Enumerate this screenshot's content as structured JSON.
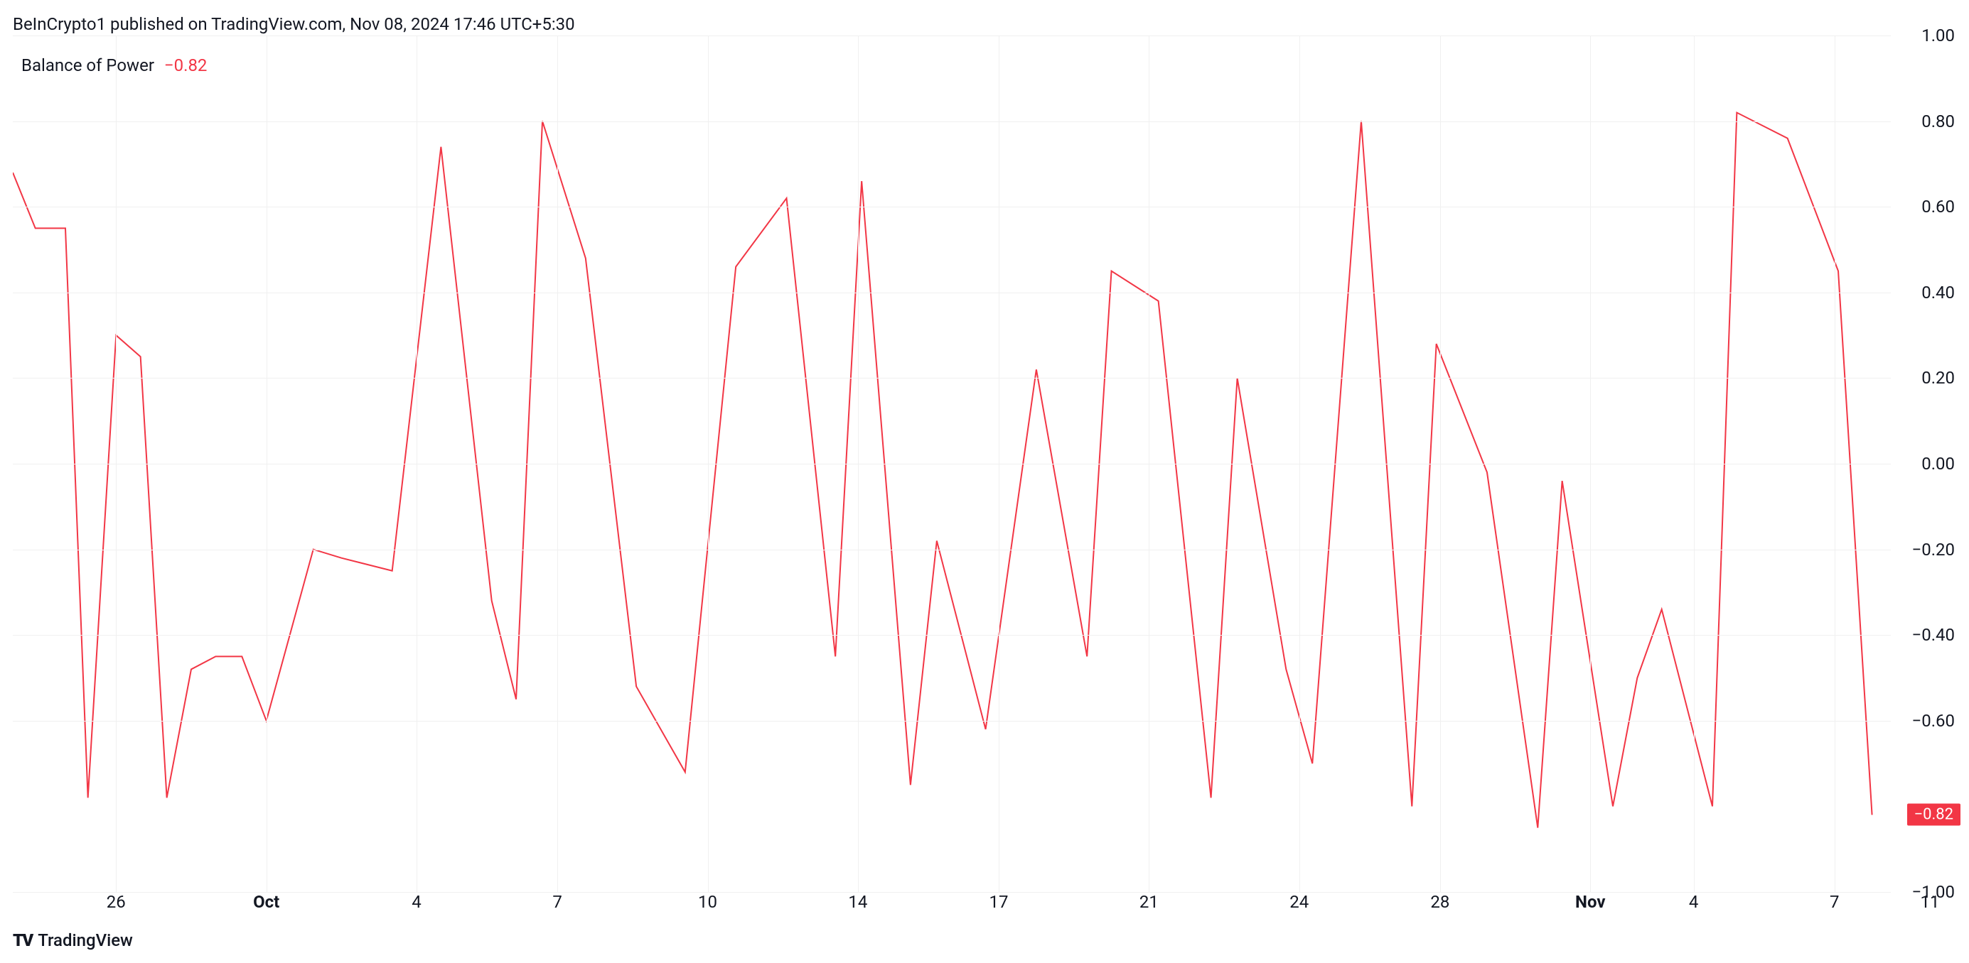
{
  "header": {
    "text": "BeInCrypto1 published on TradingView.com, Nov 08, 2024 17:46 UTC+5:30"
  },
  "indicator": {
    "name": "Balance of Power",
    "value": "−0.82"
  },
  "chart": {
    "type": "line",
    "line_color": "#f23645",
    "line_width": 2,
    "background_color": "#ffffff",
    "grid_color": "#f0f0f0",
    "ylim": [
      -1.0,
      1.0
    ],
    "yticks": [
      {
        "v": 1.0,
        "label": "1.00"
      },
      {
        "v": 0.8,
        "label": "0.80"
      },
      {
        "v": 0.6,
        "label": "0.60"
      },
      {
        "v": 0.4,
        "label": "0.40"
      },
      {
        "v": 0.2,
        "label": "0.20"
      },
      {
        "v": 0.0,
        "label": "0.00"
      },
      {
        "v": -0.2,
        "label": "−0.20"
      },
      {
        "v": -0.4,
        "label": "−0.40"
      },
      {
        "v": -0.6,
        "label": "−0.60"
      },
      {
        "v": -1.0,
        "label": "−1.00"
      }
    ],
    "current_value_badge": "−0.82",
    "xticks": [
      {
        "x": 0.055,
        "label": "26",
        "bold": false
      },
      {
        "x": 0.135,
        "label": "Oct",
        "bold": true
      },
      {
        "x": 0.215,
        "label": "4",
        "bold": false
      },
      {
        "x": 0.29,
        "label": "7",
        "bold": false
      },
      {
        "x": 0.37,
        "label": "10",
        "bold": false
      },
      {
        "x": 0.45,
        "label": "14",
        "bold": false
      },
      {
        "x": 0.525,
        "label": "17",
        "bold": false
      },
      {
        "x": 0.605,
        "label": "21",
        "bold": false
      },
      {
        "x": 0.685,
        "label": "24",
        "bold": false
      },
      {
        "x": 0.76,
        "label": "28",
        "bold": false
      },
      {
        "x": 0.84,
        "label": "Nov",
        "bold": true
      },
      {
        "x": 0.895,
        "label": "4",
        "bold": false
      },
      {
        "x": 0.97,
        "label": "7",
        "bold": false
      }
    ],
    "x_right_label": "11",
    "data": [
      {
        "x": 0.0,
        "y": 0.68
      },
      {
        "x": 0.012,
        "y": 0.55
      },
      {
        "x": 0.028,
        "y": 0.55
      },
      {
        "x": 0.04,
        "y": -0.78
      },
      {
        "x": 0.055,
        "y": 0.3
      },
      {
        "x": 0.068,
        "y": 0.25
      },
      {
        "x": 0.082,
        "y": -0.78
      },
      {
        "x": 0.095,
        "y": -0.48
      },
      {
        "x": 0.108,
        "y": -0.45
      },
      {
        "x": 0.122,
        "y": -0.45
      },
      {
        "x": 0.135,
        "y": -0.6
      },
      {
        "x": 0.16,
        "y": -0.2
      },
      {
        "x": 0.175,
        "y": -0.22
      },
      {
        "x": 0.202,
        "y": -0.25
      },
      {
        "x": 0.228,
        "y": 0.74
      },
      {
        "x": 0.255,
        "y": -0.32
      },
      {
        "x": 0.268,
        "y": -0.55
      },
      {
        "x": 0.282,
        "y": 0.8
      },
      {
        "x": 0.305,
        "y": 0.48
      },
      {
        "x": 0.332,
        "y": -0.52
      },
      {
        "x": 0.358,
        "y": -0.72
      },
      {
        "x": 0.385,
        "y": 0.46
      },
      {
        "x": 0.412,
        "y": 0.62
      },
      {
        "x": 0.438,
        "y": -0.45
      },
      {
        "x": 0.452,
        "y": 0.66
      },
      {
        "x": 0.478,
        "y": -0.75
      },
      {
        "x": 0.492,
        "y": -0.18
      },
      {
        "x": 0.518,
        "y": -0.62
      },
      {
        "x": 0.545,
        "y": 0.22
      },
      {
        "x": 0.572,
        "y": -0.45
      },
      {
        "x": 0.585,
        "y": 0.45
      },
      {
        "x": 0.61,
        "y": 0.38
      },
      {
        "x": 0.638,
        "y": -0.78
      },
      {
        "x": 0.652,
        "y": 0.2
      },
      {
        "x": 0.678,
        "y": -0.48
      },
      {
        "x": 0.692,
        "y": -0.7
      },
      {
        "x": 0.718,
        "y": 0.8
      },
      {
        "x": 0.745,
        "y": -0.8
      },
      {
        "x": 0.758,
        "y": 0.28
      },
      {
        "x": 0.785,
        "y": -0.02
      },
      {
        "x": 0.812,
        "y": -0.85
      },
      {
        "x": 0.825,
        "y": -0.04
      },
      {
        "x": 0.852,
        "y": -0.8
      },
      {
        "x": 0.865,
        "y": -0.5
      },
      {
        "x": 0.878,
        "y": -0.34
      },
      {
        "x": 0.905,
        "y": -0.8
      },
      {
        "x": 0.918,
        "y": 0.82
      },
      {
        "x": 0.945,
        "y": 0.76
      },
      {
        "x": 0.972,
        "y": 0.45
      },
      {
        "x": 0.99,
        "y": -0.82
      }
    ]
  },
  "footer": {
    "logo_text": "TradingView"
  }
}
